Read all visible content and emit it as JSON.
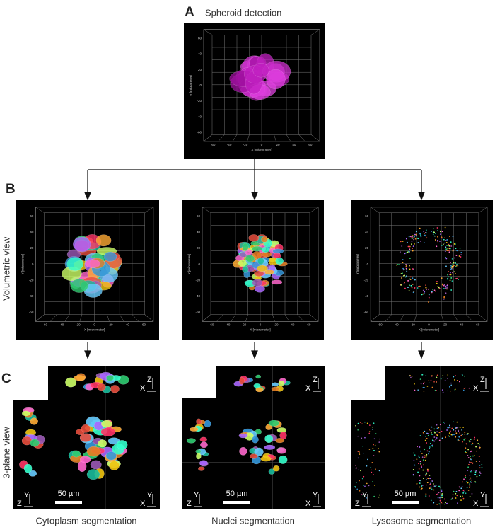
{
  "panel_a": {
    "letter": "A",
    "title": "Spheroid detection"
  },
  "panel_b": {
    "letter": "B",
    "row_label": "Volumetric view"
  },
  "panel_c": {
    "letter": "C",
    "row_label": "3-plane view"
  },
  "volume_axes": {
    "x_label": "X [micrometer]",
    "y_label": "Y [micrometer]",
    "ticks": [
      "-60",
      "-40",
      "-20",
      "0",
      "20",
      "40",
      "60"
    ]
  },
  "plane_axes": {
    "x": "X",
    "y": "Y",
    "z": "Z"
  },
  "scale_bar": "50 µm",
  "columns": [
    "Cytoplasm segmentation",
    "Nuclei segmentation",
    "Lysosome segmentation"
  ]
}
